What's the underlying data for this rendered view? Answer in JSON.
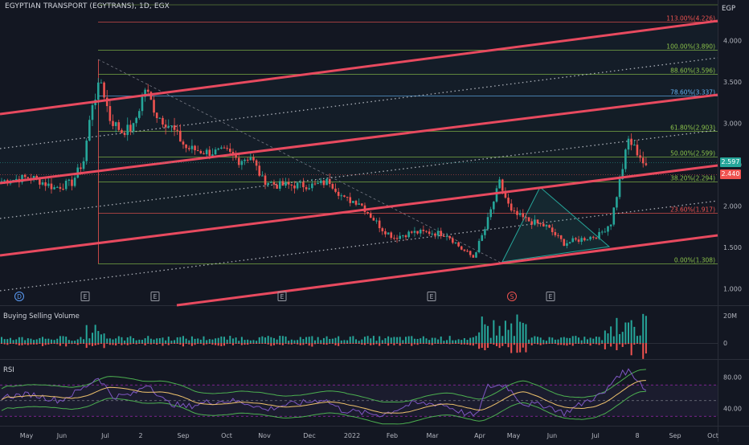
{
  "header": {
    "title": "EGYPTIAN TRANSPORT (EGYTRANS), 1D, EGX"
  },
  "axis_unit": "EGP",
  "panes": {
    "volume_label": "Buying Selling Volume",
    "rsi_label": "RSI"
  },
  "colors": {
    "background": "#131722",
    "up": "#26a69a",
    "down": "#ef5350",
    "channel": "#e84a5f",
    "fib_green": "#8bc34a",
    "fib_red": "#ef5350",
    "fib_blue": "#64b5f6",
    "rsi_line": "#7e57c2",
    "rsi_ma": "#f0c36d",
    "rsi_band": "#4caf50"
  },
  "price_tags": [
    {
      "value": "2.597",
      "color": "#26a69a"
    },
    {
      "value": "2.440",
      "color": "#ef5350"
    }
  ],
  "chart_data": {
    "type": "candlestick",
    "title": "EGYPTIAN TRANSPORT (EGYTRANS), 1D, EGX",
    "x_labels": [
      "May",
      "Jun",
      "Jul",
      "2",
      "Sep",
      "Oct",
      "Nov",
      "Dec",
      "2022",
      "Feb",
      "Mar",
      "Apr",
      "May",
      "Jun",
      "Jul",
      "8",
      "Sep",
      "Oct"
    ],
    "price_axis": {
      "unit": "EGP",
      "ticks": [
        "4.000",
        "3.500",
        "3.000",
        "2.500",
        "2.000",
        "1.500",
        "1.000"
      ],
      "ylim": [
        0.8,
        4.45
      ]
    },
    "fibonacci_levels": [
      {
        "label": "113.00%(4.226)",
        "value": 4.226
      },
      {
        "label": "100.00%(3.890)",
        "value": 3.89
      },
      {
        "label": "88.60%(3.596)",
        "value": 3.596
      },
      {
        "label": "78.60%(3.337)",
        "value": 3.337
      },
      {
        "label": "61.80%(2.903)",
        "value": 2.903
      },
      {
        "label": "50.00%(2.599)",
        "value": 2.599
      },
      {
        "label": "38.20%(2.294)",
        "value": 2.294
      },
      {
        "label": "23.60%(1.917)",
        "value": 1.917
      },
      {
        "label": "0.00%(1.308)",
        "value": 1.308
      }
    ],
    "event_markers": [
      "D",
      "E",
      "E",
      "E",
      "E",
      "S",
      "E"
    ],
    "close_path": [
      [
        0,
        2.3
      ],
      [
        10,
        2.35
      ],
      [
        18,
        2.22
      ],
      [
        24,
        2.28
      ],
      [
        28,
        2.55
      ],
      [
        31,
        3.25
      ],
      [
        34,
        3.5
      ],
      [
        37,
        3.05
      ],
      [
        41,
        2.9
      ],
      [
        45,
        2.95
      ],
      [
        49,
        3.42
      ],
      [
        53,
        3.1
      ],
      [
        58,
        2.95
      ],
      [
        63,
        2.7
      ],
      [
        70,
        2.65
      ],
      [
        77,
        2.65
      ],
      [
        81,
        2.55
      ],
      [
        85,
        2.6
      ],
      [
        89,
        2.32
      ],
      [
        94,
        2.25
      ],
      [
        100,
        2.25
      ],
      [
        107,
        2.25
      ],
      [
        112,
        2.3
      ],
      [
        117,
        2.08
      ],
      [
        122,
        2.05
      ],
      [
        126,
        1.88
      ],
      [
        130,
        1.72
      ],
      [
        134,
        1.62
      ],
      [
        140,
        1.68
      ],
      [
        146,
        1.68
      ],
      [
        152,
        1.66
      ],
      [
        157,
        1.48
      ],
      [
        161,
        1.38
      ],
      [
        165,
        1.72
      ],
      [
        170,
        2.28
      ],
      [
        174,
        1.92
      ],
      [
        180,
        1.82
      ],
      [
        186,
        1.75
      ],
      [
        192,
        1.55
      ],
      [
        198,
        1.6
      ],
      [
        204,
        1.65
      ],
      [
        208,
        1.8
      ],
      [
        211,
        2.3
      ],
      [
        214,
        2.8
      ],
      [
        218,
        2.6
      ],
      [
        220,
        2.45
      ]
    ],
    "volume_axis": {
      "ticks": [
        "20M",
        "0"
      ]
    },
    "rsi_axis": {
      "ticks": [
        "80.00",
        "40.00"
      ],
      "ylim": [
        20,
        100
      ]
    },
    "rsi_path": [
      [
        0,
        55
      ],
      [
        10,
        58
      ],
      [
        20,
        50
      ],
      [
        28,
        66
      ],
      [
        33,
        80
      ],
      [
        38,
        55
      ],
      [
        45,
        58
      ],
      [
        50,
        72
      ],
      [
        56,
        48
      ],
      [
        63,
        42
      ],
      [
        70,
        48
      ],
      [
        78,
        50
      ],
      [
        85,
        46
      ],
      [
        90,
        38
      ],
      [
        96,
        44
      ],
      [
        104,
        48
      ],
      [
        110,
        52
      ],
      [
        116,
        38
      ],
      [
        124,
        34
      ],
      [
        130,
        32
      ],
      [
        140,
        46
      ],
      [
        150,
        46
      ],
      [
        158,
        34
      ],
      [
        162,
        30
      ],
      [
        166,
        68
      ],
      [
        172,
        70
      ],
      [
        178,
        46
      ],
      [
        186,
        44
      ],
      [
        192,
        34
      ],
      [
        200,
        50
      ],
      [
        206,
        60
      ],
      [
        210,
        82
      ],
      [
        214,
        88
      ],
      [
        218,
        74
      ],
      [
        220,
        62
      ]
    ]
  }
}
